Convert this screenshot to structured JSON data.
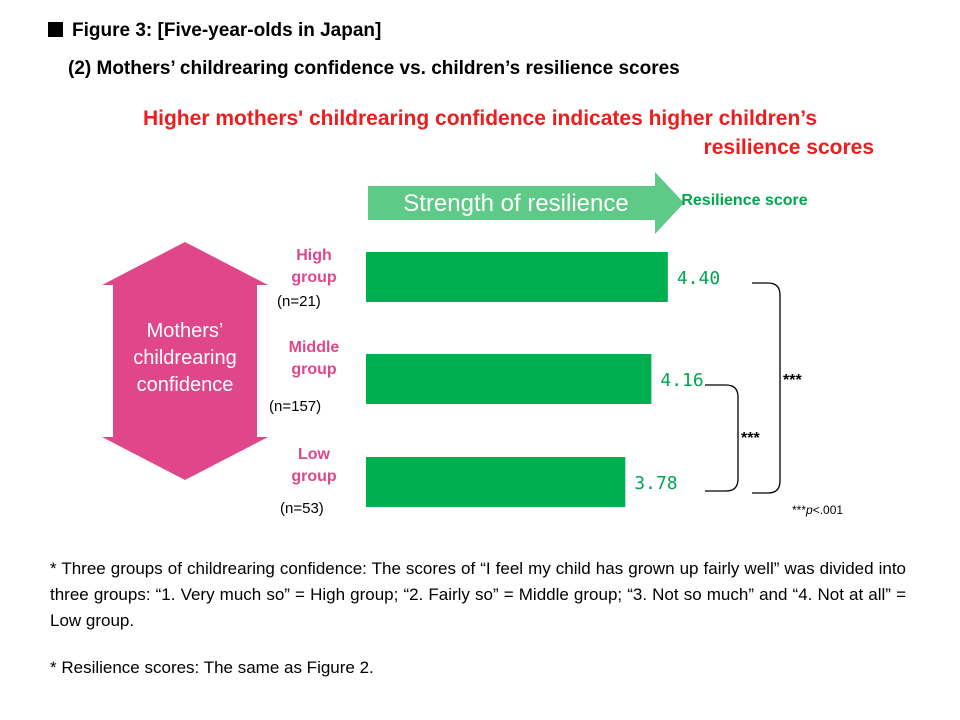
{
  "figure": {
    "title": "Figure 3: [Five-year-olds in Japan]",
    "subtitle": "(2) Mothers’ childrearing confidence vs. children’s resilience scores",
    "headline_line1": "Higher mothers' childrearing confidence indicates higher children’s",
    "headline_line2": "resilience scores"
  },
  "arrows": {
    "strength_label": "Strength of resilience",
    "confidence_label": "Mothers’ childrearing confidence"
  },
  "chart_data": {
    "type": "bar",
    "orientation": "horizontal",
    "value_header": "Resilience score",
    "categories": [
      {
        "name": "High group",
        "n": "(n=21)"
      },
      {
        "name": "Middle group",
        "n": "(n=157)"
      },
      {
        "name": "Low group",
        "n": "(n=53)"
      }
    ],
    "values": [
      4.4,
      4.16,
      3.78
    ],
    "value_labels": [
      "4.40",
      "4.16",
      "3.78"
    ],
    "significance": [
      {
        "between": [
          "High group",
          "Low group"
        ],
        "label": "***"
      },
      {
        "between": [
          "Middle group",
          "Low group"
        ],
        "label": "***"
      }
    ],
    "significance_note": {
      "prefix": "***",
      "p": "p",
      "suffix": "<.001"
    },
    "bar_color": "#00b050"
  },
  "colors": {
    "bar": "#00b050",
    "value_text": "#00a650",
    "headline": "#ee1c1c",
    "double_arrow": "#e0478a",
    "strength_arrow": "#5fc987"
  },
  "notes": {
    "note1": "* Three groups of childrearing confidence: The scores of “I feel my child has grown up fairly well” was divided into three groups: “1. Very much so” = High group; “2. Fairly so” = Middle group; “3. Not so much” and “4. Not at all” = Low group.",
    "note2": "* Resilience scores: The same as Figure 2."
  }
}
